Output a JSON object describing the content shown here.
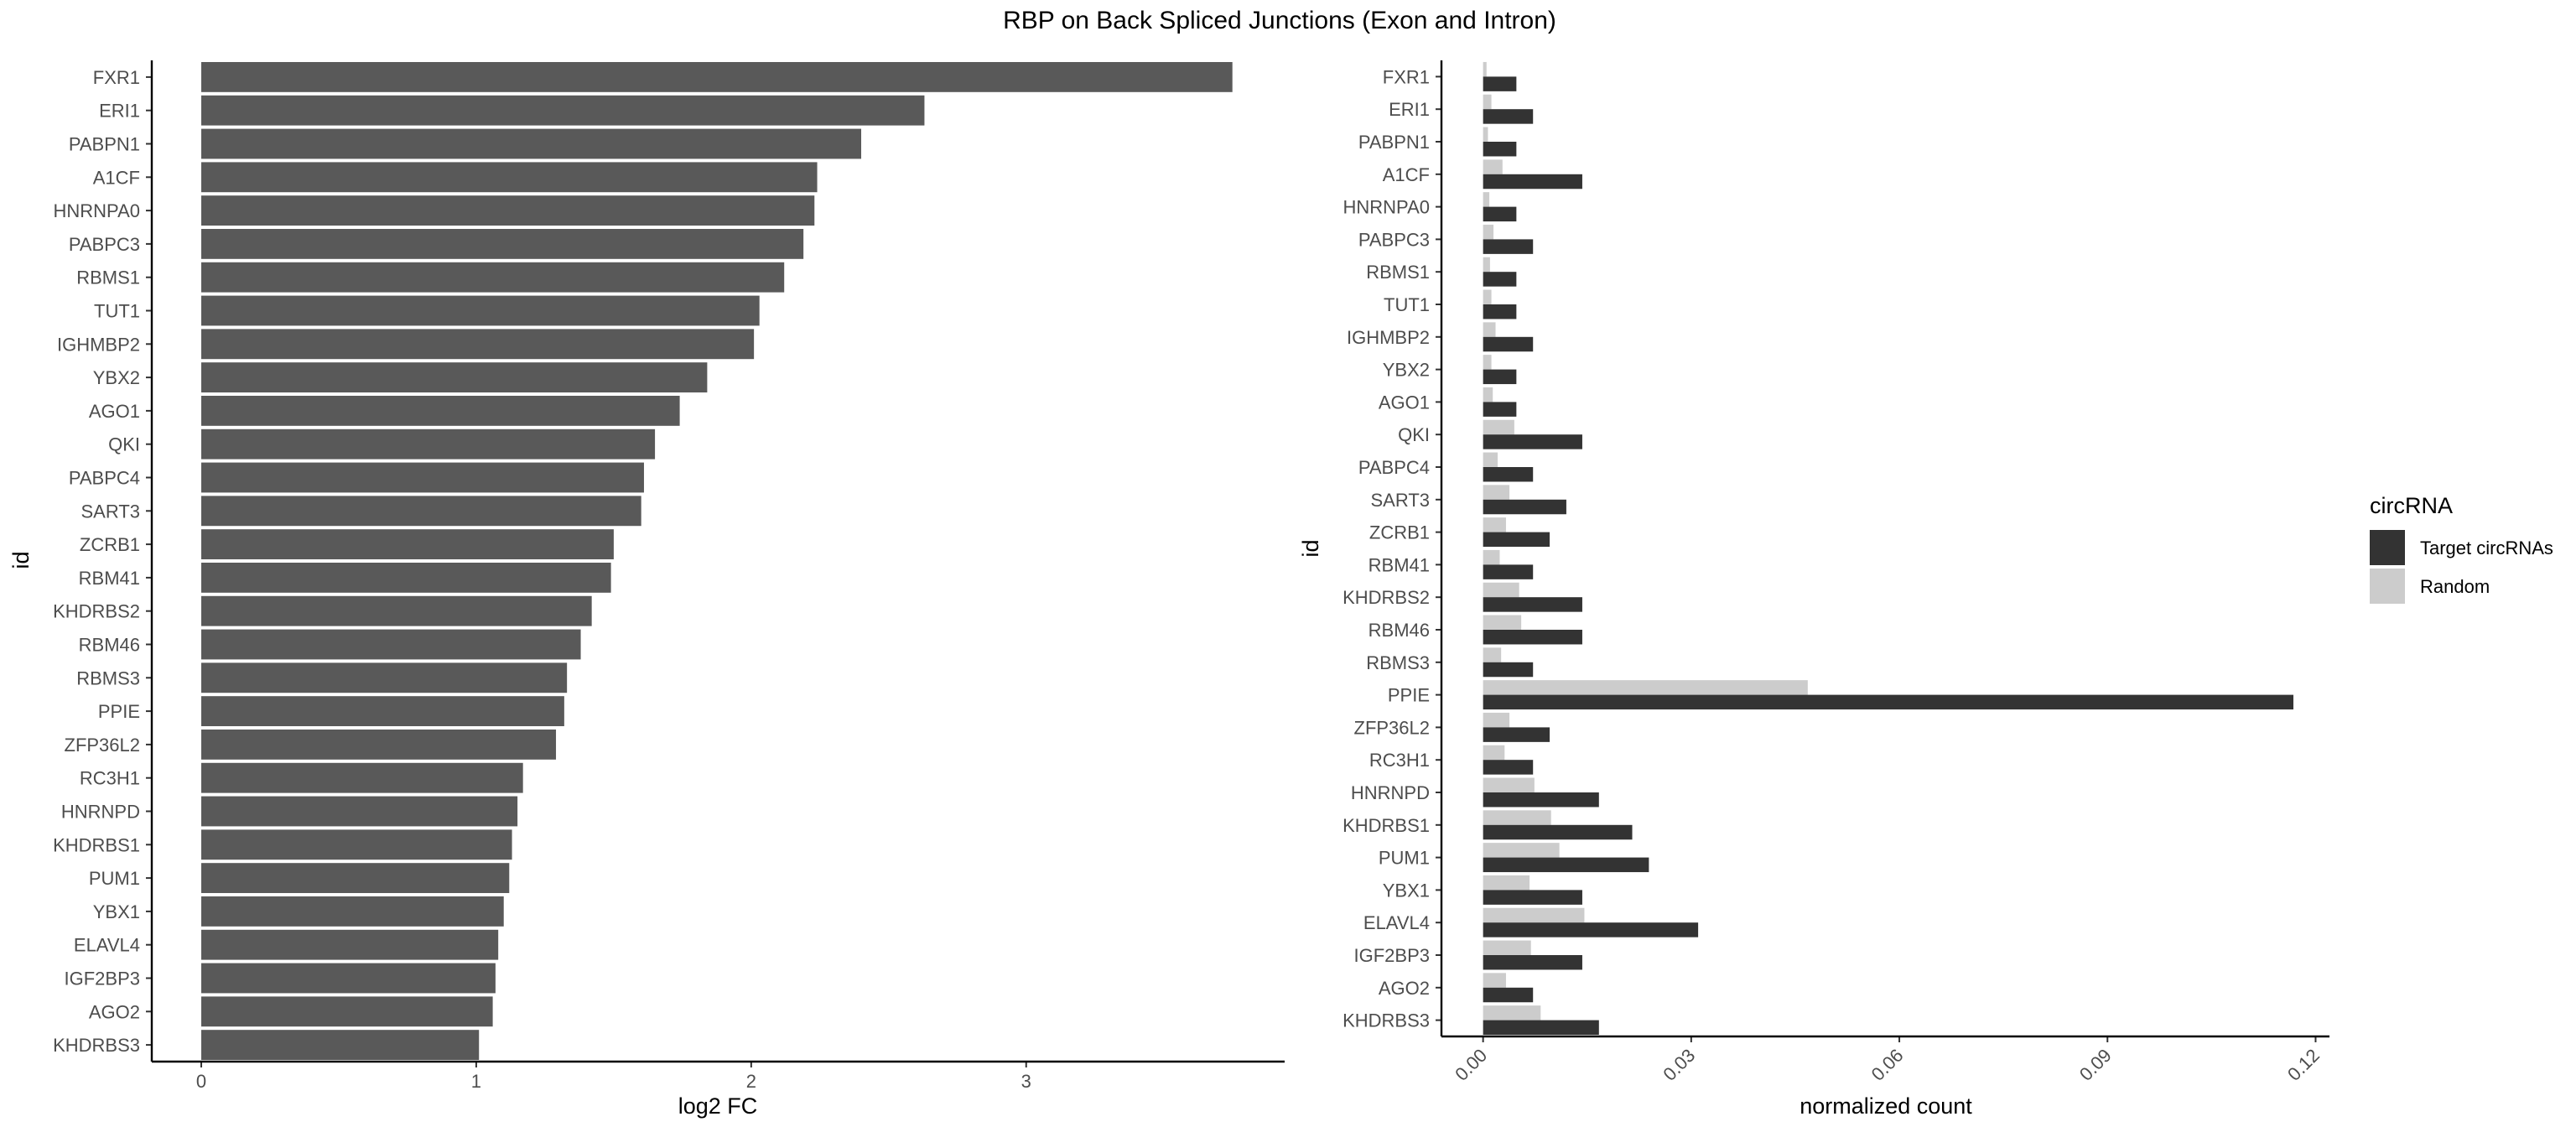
{
  "title": "RBP on Back Spliced Junctions (Exon and Intron)",
  "chart_data": [
    {
      "type": "bar",
      "orientation": "horizontal",
      "xlabel": "log2 FC",
      "ylabel": "id",
      "xlim": [
        -0.18,
        3.94
      ],
      "xticks": [
        "0",
        "1",
        "2",
        "3"
      ],
      "categories": [
        "FXR1",
        "ERI1",
        "PABPN1",
        "A1CF",
        "HNRNPA0",
        "PABPC3",
        "RBMS1",
        "TUT1",
        "IGHMBP2",
        "YBX2",
        "AGO1",
        "QKI",
        "PABPC4",
        "SART3",
        "ZCRB1",
        "RBM41",
        "KHDRBS2",
        "RBM46",
        "RBMS3",
        "PPIE",
        "ZFP36L2",
        "RC3H1",
        "HNRNPD",
        "KHDRBS1",
        "PUM1",
        "YBX1",
        "ELAVL4",
        "IGF2BP3",
        "AGO2",
        "KHDRBS3"
      ],
      "values": [
        3.75,
        2.63,
        2.4,
        2.24,
        2.23,
        2.19,
        2.12,
        2.03,
        2.01,
        1.84,
        1.74,
        1.65,
        1.61,
        1.6,
        1.5,
        1.49,
        1.42,
        1.38,
        1.33,
        1.32,
        1.29,
        1.17,
        1.15,
        1.13,
        1.12,
        1.1,
        1.08,
        1.07,
        1.06,
        1.01
      ],
      "color": "#595959",
      "grid": false
    },
    {
      "type": "bar",
      "orientation": "horizontal",
      "grouped": true,
      "xlabel": "normalized count",
      "ylabel": "id",
      "xlim": [
        -0.006,
        0.122
      ],
      "xticks": [
        "0.00",
        "0.03",
        "0.06",
        "0.09",
        "0.12"
      ],
      "xtick_rotation": -45,
      "categories": [
        "FXR1",
        "ERI1",
        "PABPN1",
        "A1CF",
        "HNRNPA0",
        "PABPC3",
        "RBMS1",
        "TUT1",
        "IGHMBP2",
        "YBX2",
        "AGO1",
        "QKI",
        "PABPC4",
        "SART3",
        "ZCRB1",
        "RBM41",
        "KHDRBS2",
        "RBM46",
        "RBMS3",
        "PPIE",
        "ZFP36L2",
        "RC3H1",
        "HNRNPD",
        "KHDRBS1",
        "PUM1",
        "YBX1",
        "ELAVL4",
        "IGF2BP3",
        "AGO2",
        "KHDRBS3"
      ],
      "legend_title": "circRNA",
      "legend_position": "right",
      "series": [
        {
          "name": "Target circRNAs",
          "color": "#333333",
          "values": [
            0.0048,
            0.0072,
            0.0048,
            0.0143,
            0.0048,
            0.0072,
            0.0048,
            0.0048,
            0.0072,
            0.0048,
            0.0048,
            0.0143,
            0.0072,
            0.012,
            0.0096,
            0.0072,
            0.0143,
            0.0143,
            0.0072,
            0.1168,
            0.0096,
            0.0072,
            0.0167,
            0.0215,
            0.0239,
            0.0143,
            0.031,
            0.0143,
            0.0072,
            0.0167
          ]
        },
        {
          "name": "Random",
          "color": "#cccccc",
          "values": [
            0.0005,
            0.0012,
            0.0007,
            0.0028,
            0.0009,
            0.0015,
            0.001,
            0.0012,
            0.0018,
            0.0012,
            0.0014,
            0.0045,
            0.0021,
            0.0038,
            0.0033,
            0.0024,
            0.0052,
            0.0055,
            0.0026,
            0.0468,
            0.0038,
            0.0031,
            0.0074,
            0.0098,
            0.011,
            0.0067,
            0.0146,
            0.0069,
            0.0033,
            0.0083
          ]
        }
      ]
    }
  ]
}
